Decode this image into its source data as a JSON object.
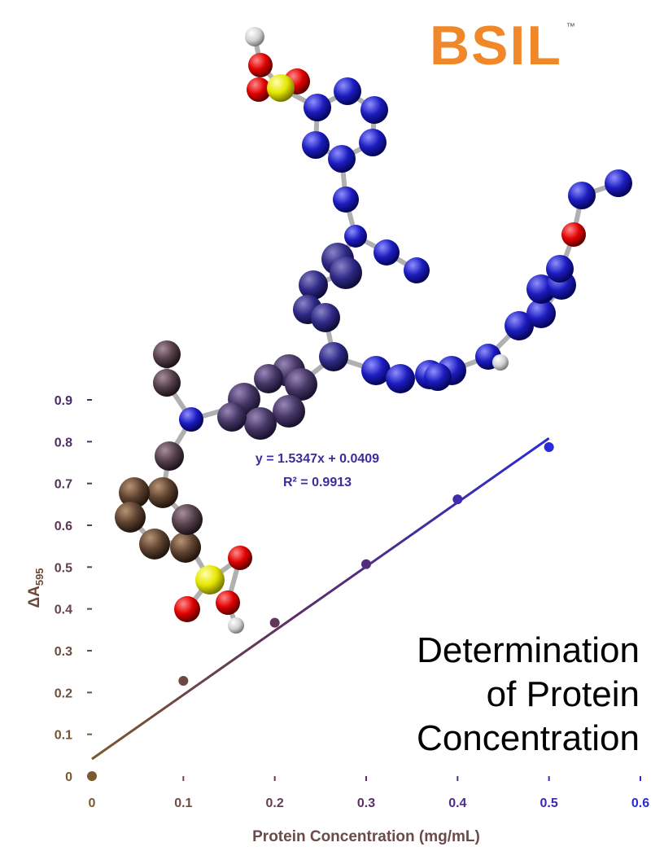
{
  "logo": {
    "text": "BSIL",
    "trademark": "™",
    "color": "#f0882a"
  },
  "caption": {
    "line1": "Determination",
    "line2": "of Protein",
    "line3": "Concentration"
  },
  "chart_data": {
    "type": "scatter",
    "xlabel": "Protein Concentration (mg/mL)",
    "ylabel": "ΔA595",
    "xlim": [
      0,
      0.6
    ],
    "ylim": [
      0,
      0.9
    ],
    "x_ticks": [
      "0",
      "0.1",
      "0.2",
      "0.3",
      "0.4",
      "0.5",
      "0.6"
    ],
    "y_ticks": [
      "0",
      "0.1",
      "0.2",
      "0.3",
      "0.4",
      "0.5",
      "0.6",
      "0.7",
      "0.8",
      "0.9"
    ],
    "grid": false,
    "series": [
      {
        "x": [
          0,
          0.1,
          0.2,
          0.3,
          0.4,
          0.5
        ],
        "y": [
          0,
          0.228,
          0.367,
          0.507,
          0.662,
          0.787
        ]
      }
    ],
    "trendline": {
      "slope": 1.5347,
      "intercept": 0.0409,
      "x_range": [
        0,
        0.5
      ]
    },
    "annotations": {
      "equation": "y = 1.5347x + 0.0409",
      "r_squared": "R² = 0.9913"
    },
    "colors": {
      "start": "#7a5a2e",
      "mid": "#5b2e66",
      "end": "#2a2ad8"
    }
  }
}
